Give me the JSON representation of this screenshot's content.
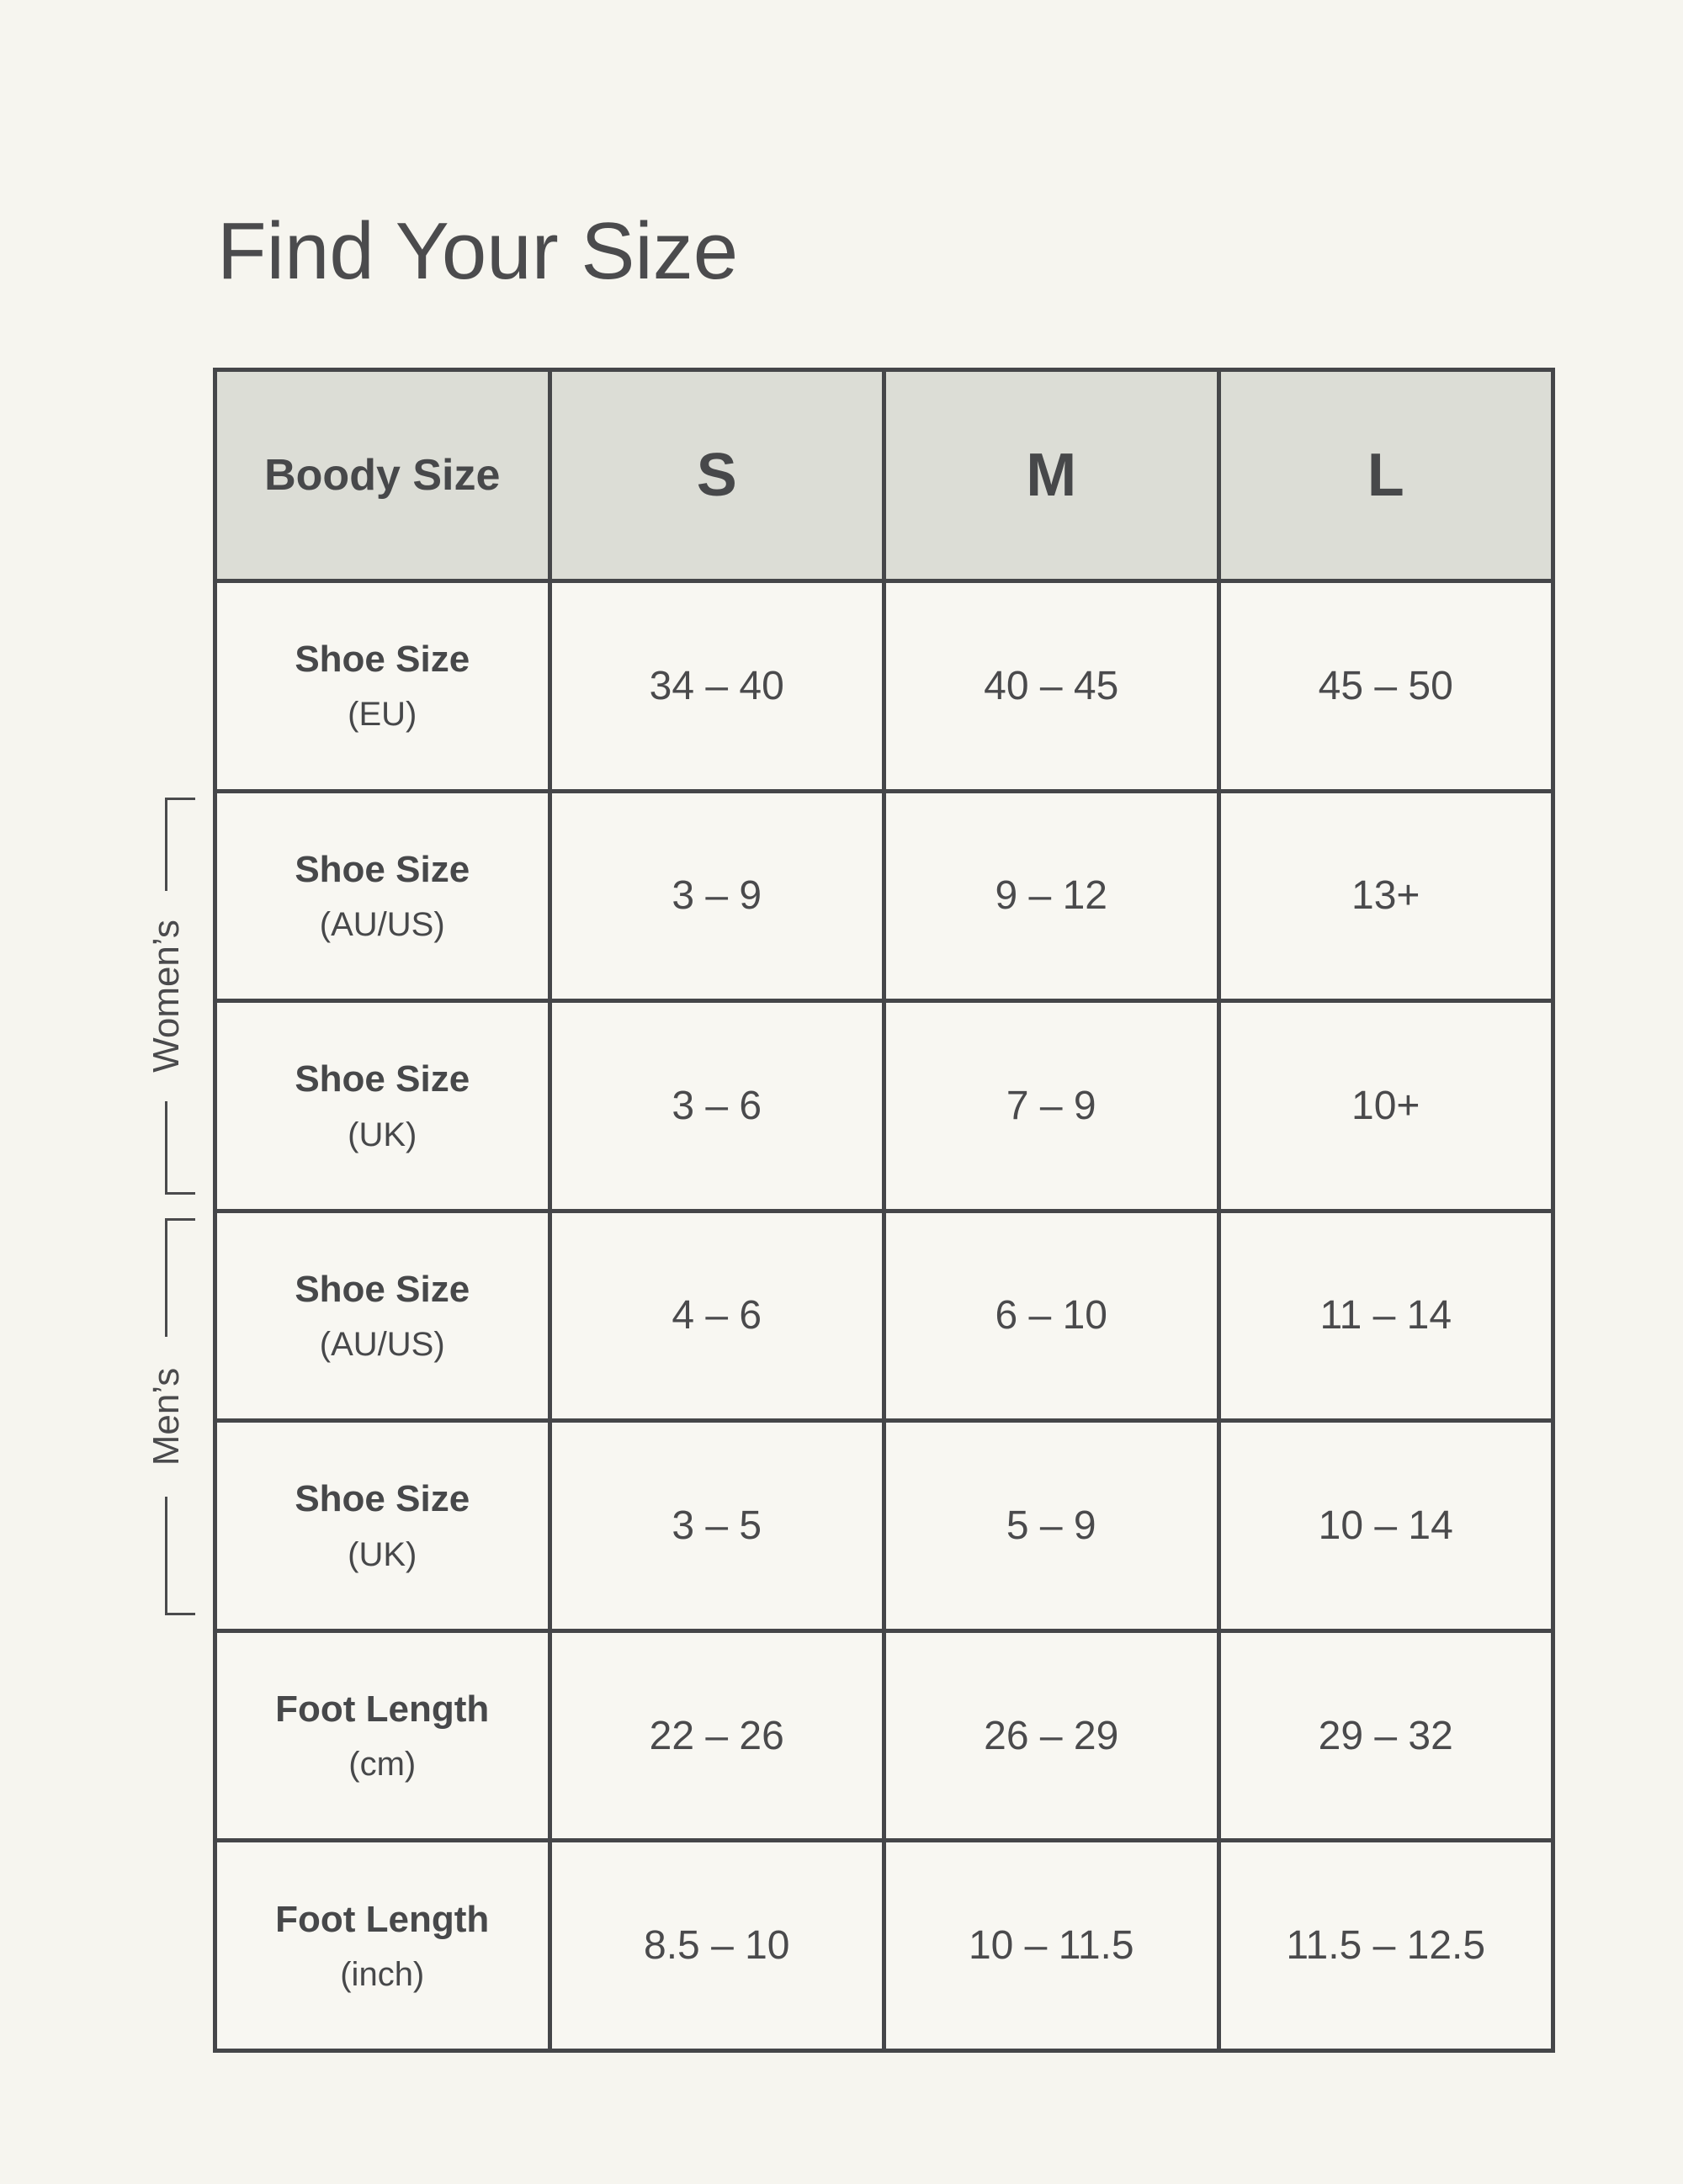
{
  "page": {
    "title": "Find Your Size"
  },
  "colors": {
    "page_bg": "#F6F5EF",
    "cell_bg": "#F8F7F2",
    "header_bg": "#DCDDD6",
    "border": "#454649",
    "text": "#47484A"
  },
  "side_labels": {
    "womens": "Women’s",
    "mens": "Men’s"
  },
  "table": {
    "header": {
      "label": "Boody Size",
      "sizes": [
        "S",
        "M",
        "L"
      ]
    },
    "rows": [
      {
        "label": "Shoe Size",
        "unit": "(EU)",
        "group": "",
        "values": [
          "34 – 40",
          "40 – 45",
          "45 – 50"
        ]
      },
      {
        "label": "Shoe Size",
        "unit": "(AU/US)",
        "group": "womens",
        "values": [
          "3 – 9",
          "9 – 12",
          "13+"
        ]
      },
      {
        "label": "Shoe Size",
        "unit": "(UK)",
        "group": "womens",
        "values": [
          "3 – 6",
          "7 – 9",
          "10+"
        ]
      },
      {
        "label": "Shoe Size",
        "unit": "(AU/US)",
        "group": "mens",
        "values": [
          "4 – 6",
          "6 – 10",
          "11 – 14"
        ]
      },
      {
        "label": "Shoe Size",
        "unit": "(UK)",
        "group": "mens",
        "values": [
          "3 – 5",
          "5 – 9",
          "10 – 14"
        ]
      },
      {
        "label": "Foot Length",
        "unit": "(cm)",
        "group": "",
        "values": [
          "22 – 26",
          "26 – 29",
          "29 – 32"
        ]
      },
      {
        "label": "Foot Length",
        "unit": "(inch)",
        "group": "",
        "values": [
          "8.5 – 10",
          "10 – 11.5",
          "11.5 – 12.5"
        ]
      }
    ]
  }
}
